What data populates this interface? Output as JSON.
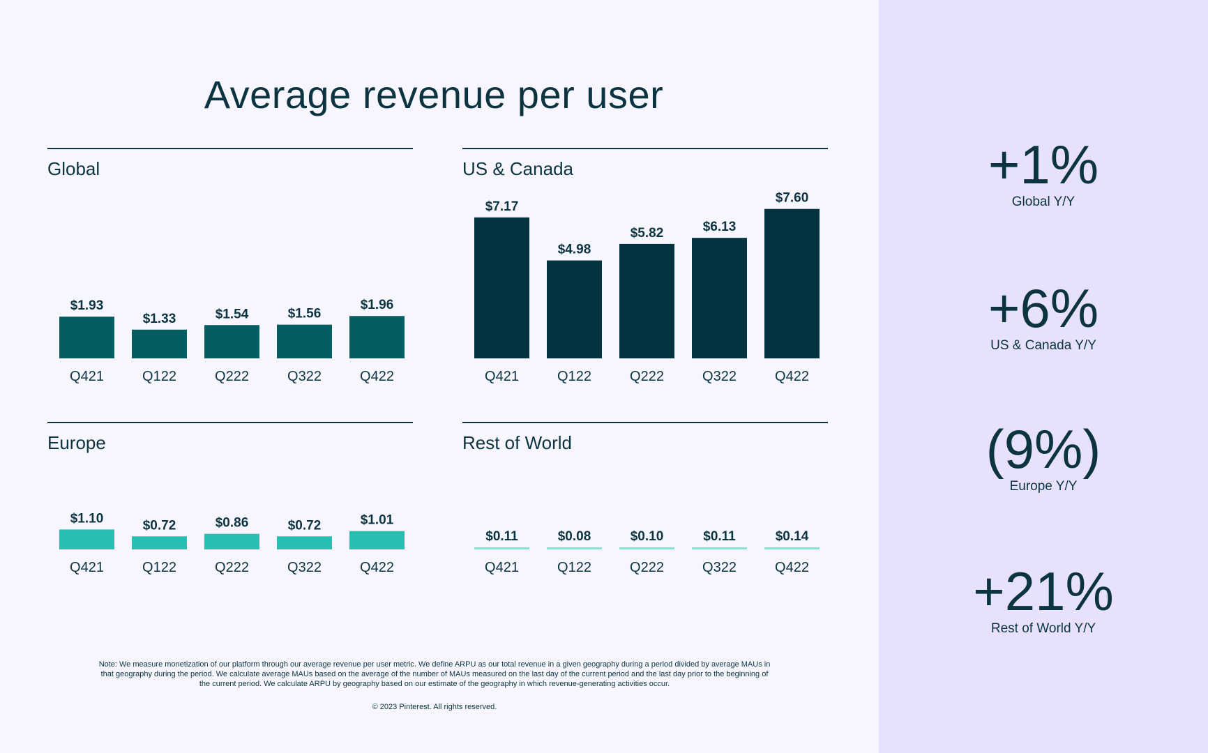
{
  "title": "Average revenue per user",
  "colors": {
    "text": "#0b3440",
    "global_bar": "#045d60",
    "us_canada_bar": "#033340",
    "europe_bar": "#27bfb1",
    "rest_of_world_bar": "#82e3d6",
    "main_bg": "#f7f6fe",
    "side_bg": "#e8e1fe"
  },
  "chart_data": [
    {
      "type": "bar",
      "title": "Global",
      "categories": [
        "Q421",
        "Q122",
        "Q222",
        "Q322",
        "Q422"
      ],
      "values": [
        1.93,
        1.33,
        1.54,
        1.56,
        1.96
      ],
      "labels": [
        "$1.93",
        "$1.33",
        "$1.54",
        "$1.56",
        "$1.96"
      ],
      "xlabel": "",
      "ylabel": "",
      "grid": false
    },
    {
      "type": "bar",
      "title": "US & Canada",
      "categories": [
        "Q421",
        "Q122",
        "Q222",
        "Q322",
        "Q422"
      ],
      "values": [
        7.17,
        4.98,
        5.82,
        6.13,
        7.6
      ],
      "labels": [
        "$7.17",
        "$4.98",
        "$5.82",
        "$6.13",
        "$7.60"
      ],
      "xlabel": "",
      "ylabel": "",
      "grid": false
    },
    {
      "type": "bar",
      "title": "Europe",
      "categories": [
        "Q421",
        "Q122",
        "Q222",
        "Q322",
        "Q422"
      ],
      "values": [
        1.1,
        0.72,
        0.86,
        0.72,
        1.01
      ],
      "labels": [
        "$1.10",
        "$0.72",
        "$0.86",
        "$0.72",
        "$1.01"
      ],
      "xlabel": "",
      "ylabel": "",
      "grid": false
    },
    {
      "type": "bar",
      "title": "Rest of World",
      "categories": [
        "Q421",
        "Q122",
        "Q222",
        "Q322",
        "Q422"
      ],
      "values": [
        0.11,
        0.08,
        0.1,
        0.11,
        0.14
      ],
      "labels": [
        "$0.11",
        "$0.08",
        "$0.10",
        "$0.11",
        "$0.14"
      ],
      "xlabel": "",
      "ylabel": "",
      "grid": false
    }
  ],
  "kpis": [
    {
      "value": "+1%",
      "label": "Global Y/Y"
    },
    {
      "value": "+6%",
      "label": "US & Canada Y/Y"
    },
    {
      "value": "(9%)",
      "label": "Europe Y/Y"
    },
    {
      "value": "+21%",
      "label": "Rest of World Y/Y"
    }
  ],
  "footnote": "Note: We measure monetization of our platform through our average revenue per user metric. We define ARPU as our total revenue in a given geography during a period divided by average MAUs in that geography during the period. We calculate average MAUs based on the average of the number of MAUs measured on the last day of the current period and the last day prior to the beginning of the current period. We calculate ARPU by geography based on our estimate of the geography in which revenue-generating activities occur.",
  "copyright": "© 2023 Pinterest. All rights reserved."
}
